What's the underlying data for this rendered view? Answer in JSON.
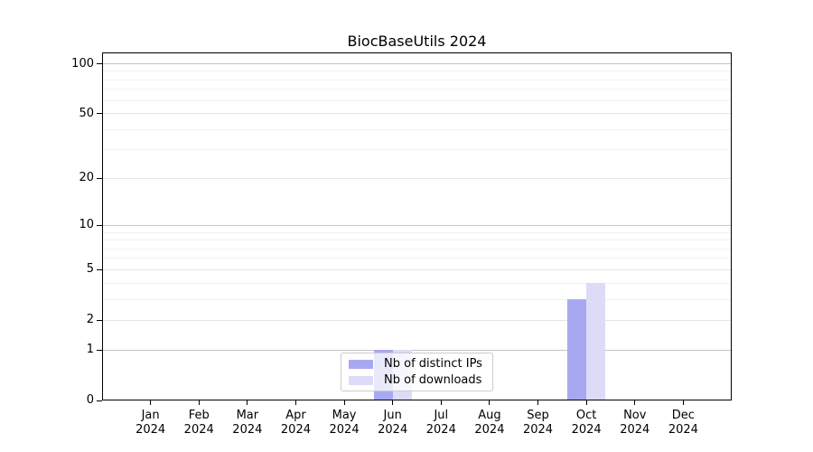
{
  "chart_data": {
    "type": "bar",
    "title": "BiocBaseUtils 2024",
    "categories": [
      "Jan 2024",
      "Feb 2024",
      "Mar 2024",
      "Apr 2024",
      "May 2024",
      "Jun 2024",
      "Jul 2024",
      "Aug 2024",
      "Sep 2024",
      "Oct 2024",
      "Nov 2024",
      "Dec 2024"
    ],
    "series": [
      {
        "name": "Nb of distinct IPs",
        "color": "#a8a8f2",
        "values": [
          0,
          0,
          0,
          0,
          0,
          1,
          0,
          0,
          0,
          3,
          0,
          0
        ]
      },
      {
        "name": "Nb of downloads",
        "color": "#dcdcf8",
        "values": [
          0,
          0,
          0,
          0,
          0,
          1,
          0,
          0,
          0,
          4,
          0,
          0
        ]
      }
    ],
    "xlabel": "",
    "ylabel": "",
    "yscale": "log1p",
    "ylim": [
      0,
      117
    ],
    "yticks": [
      0,
      1,
      2,
      5,
      10,
      20,
      50,
      100
    ],
    "minor_yticks": [
      3,
      4,
      6,
      7,
      8,
      9,
      30,
      40,
      60,
      70,
      80,
      90
    ],
    "grid": true,
    "legend_position": "lower center",
    "colors": {
      "grid_decade": "#c6c6c6",
      "grid_major": "#e6e6e6",
      "grid_minor": "#f1f1f1",
      "spine": "#000000",
      "legend_border": "#cccccc",
      "background": "#ffffff"
    }
  }
}
